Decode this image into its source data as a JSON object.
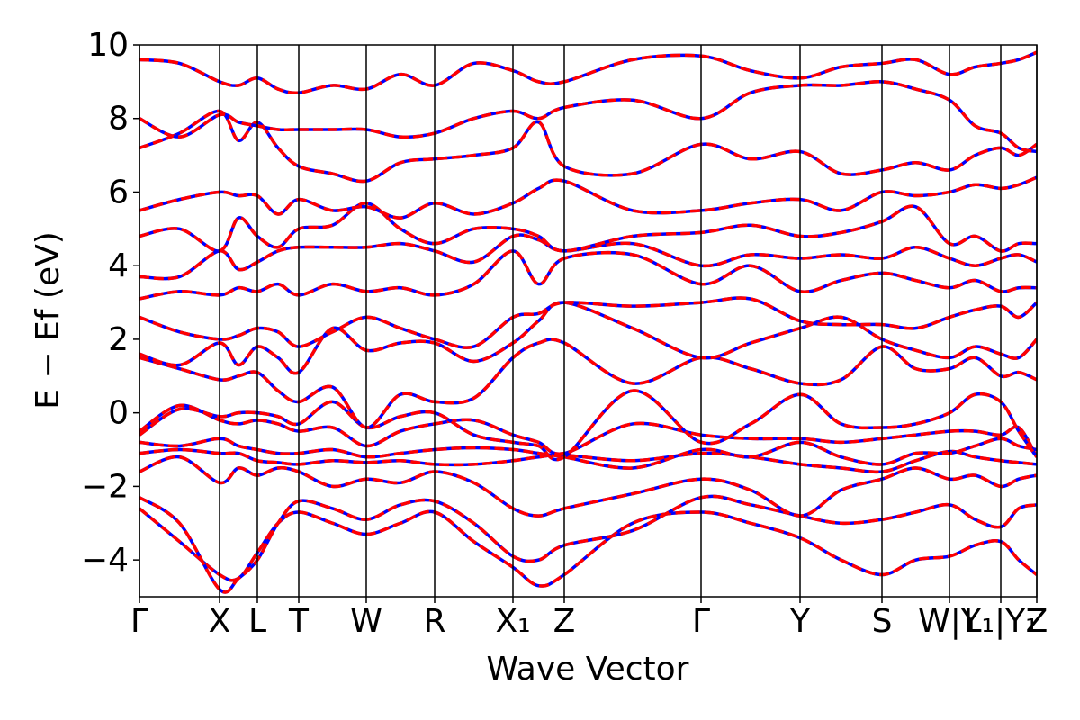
{
  "chart_data": {
    "type": "line",
    "xlabel": "Wave Vector",
    "ylabel": "E − Ef (eV)",
    "xlim": [
      0,
      9.97
    ],
    "ylim": [
      -5,
      10
    ],
    "xticks": [
      {
        "value": 0,
        "label": "Γ"
      },
      {
        "value": 0.89,
        "label": "X"
      },
      {
        "value": 1.31,
        "label": "L"
      },
      {
        "value": 1.77,
        "label": "T"
      },
      {
        "value": 2.52,
        "label": "W"
      },
      {
        "value": 3.28,
        "label": "R"
      },
      {
        "value": 4.15,
        "label": "X₁"
      },
      {
        "value": 4.72,
        "label": "Z"
      },
      {
        "value": 6.24,
        "label": "Γ"
      },
      {
        "value": 7.34,
        "label": "Y"
      },
      {
        "value": 8.25,
        "label": "S"
      },
      {
        "value": 9.0,
        "label": "W|Y"
      },
      {
        "value": 9.57,
        "label": "L₁|Y₁"
      },
      {
        "value": 9.97,
        "label": "Z"
      }
    ],
    "yticks": [
      {
        "value": -4,
        "label": "−4"
      },
      {
        "value": -2,
        "label": "−2"
      },
      0,
      2,
      4,
      6,
      8,
      10
    ],
    "line_colors": [
      "#0000ff",
      "#ff0000"
    ],
    "line_styles": [
      "solid",
      "dashed"
    ],
    "x": [
      0,
      0.445,
      0.89,
      1.1,
      1.31,
      1.54,
      1.77,
      2.145,
      2.52,
      2.9,
      3.28,
      3.715,
      4.15,
      4.435,
      4.72,
      5.48,
      6.24,
      6.79,
      7.34,
      7.795,
      8.25,
      8.625,
      9.0,
      9.285,
      9.57,
      9.77,
      9.97
    ],
    "series": [
      {
        "values": [
          -2.6,
          -3.5,
          -4.4,
          -4.5,
          -3.8,
          -3.0,
          -2.7,
          -3.0,
          -3.3,
          -3.0,
          -2.7,
          -3.5,
          -4.2,
          -4.7,
          -4.4,
          -3.0,
          -2.7,
          -3.0,
          -3.4,
          -4.0,
          -4.4,
          -4.0,
          -3.9,
          -3.6,
          -3.5,
          -4.0,
          -4.4
        ]
      },
      {
        "values": [
          -2.3,
          -3.0,
          -4.8,
          -4.5,
          -4.0,
          -3.0,
          -2.4,
          -2.6,
          -2.9,
          -2.5,
          -2.4,
          -3.0,
          -3.9,
          -4.0,
          -3.6,
          -3.2,
          -2.3,
          -2.5,
          -2.8,
          -3.0,
          -2.9,
          -2.7,
          -2.5,
          -2.9,
          -3.1,
          -2.6,
          -2.5
        ]
      },
      {
        "values": [
          -1.6,
          -1.2,
          -1.9,
          -1.5,
          -1.7,
          -1.5,
          -1.6,
          -2.0,
          -1.8,
          -1.9,
          -1.6,
          -1.9,
          -2.6,
          -2.8,
          -2.6,
          -2.2,
          -1.8,
          -2.1,
          -2.8,
          -2.1,
          -1.8,
          -1.5,
          -1.8,
          -1.7,
          -2.0,
          -1.8,
          -1.7
        ]
      },
      {
        "values": [
          -1.1,
          -1.0,
          -1.1,
          -1.1,
          -1.3,
          -1.35,
          -1.4,
          -1.3,
          -1.35,
          -1.3,
          -1.4,
          -1.4,
          -1.3,
          -1.2,
          -1.15,
          -1.3,
          -1.1,
          -1.2,
          -1.4,
          -1.5,
          -1.6,
          -1.3,
          -1.05,
          -1.2,
          -1.3,
          -1.35,
          -1.4
        ]
      },
      {
        "values": [
          -0.8,
          -0.9,
          -0.7,
          -0.9,
          -1.0,
          -1.1,
          -1.1,
          -1.0,
          -1.2,
          -1.1,
          -1.0,
          -0.95,
          -1.0,
          -1.1,
          -1.2,
          -1.5,
          -1.0,
          -1.2,
          -0.8,
          -1.2,
          -1.4,
          -1.1,
          -1.1,
          -0.9,
          -0.7,
          -0.9,
          -1.0
        ]
      },
      {
        "values": [
          -0.5,
          0.2,
          -0.2,
          -0.3,
          -0.2,
          -0.3,
          -0.5,
          -0.4,
          -0.9,
          -0.5,
          -0.3,
          -0.2,
          -0.6,
          -0.8,
          -1.1,
          -0.3,
          -0.6,
          -0.7,
          -0.7,
          -0.8,
          -0.7,
          -0.6,
          -0.5,
          -0.5,
          -0.6,
          -0.4,
          -1.2
        ]
      },
      {
        "values": [
          -0.6,
          0.1,
          -0.1,
          0.0,
          0.0,
          -0.1,
          -0.3,
          0.3,
          -0.4,
          -0.1,
          0.0,
          -0.6,
          -0.8,
          -0.9,
          -1.2,
          0.6,
          -0.8,
          -0.3,
          0.5,
          -0.3,
          -0.4,
          -0.3,
          0.0,
          0.5,
          0.3,
          -0.5,
          -1.2
        ]
      },
      {
        "values": [
          1.5,
          1.2,
          0.9,
          1.0,
          1.1,
          0.6,
          0.3,
          0.7,
          -0.4,
          0.5,
          0.3,
          0.4,
          1.5,
          1.9,
          1.9,
          0.8,
          1.5,
          1.2,
          0.8,
          0.9,
          1.8,
          1.2,
          1.2,
          1.5,
          1.0,
          1.1,
          0.9
        ]
      },
      {
        "values": [
          1.6,
          1.3,
          1.9,
          1.3,
          1.8,
          1.5,
          1.1,
          2.3,
          1.7,
          1.9,
          1.9,
          1.4,
          1.9,
          2.5,
          3.0,
          2.3,
          1.5,
          1.9,
          2.3,
          2.6,
          2.0,
          1.7,
          1.5,
          1.8,
          1.6,
          1.5,
          2.0
        ]
      },
      {
        "values": [
          2.6,
          2.2,
          2.0,
          2.1,
          2.3,
          2.2,
          1.8,
          2.2,
          2.6,
          2.3,
          2.0,
          1.8,
          2.6,
          2.7,
          3.0,
          2.9,
          3.0,
          3.1,
          2.5,
          2.4,
          2.4,
          2.3,
          2.6,
          2.8,
          2.9,
          2.6,
          3.0
        ]
      },
      {
        "values": [
          3.1,
          3.3,
          3.2,
          3.4,
          3.3,
          3.5,
          3.2,
          3.5,
          3.3,
          3.4,
          3.2,
          3.5,
          4.4,
          3.5,
          4.2,
          4.3,
          3.5,
          4.0,
          3.3,
          3.6,
          3.8,
          3.6,
          3.4,
          3.6,
          3.3,
          3.4,
          3.4
        ]
      },
      {
        "values": [
          3.7,
          3.7,
          4.4,
          3.9,
          4.1,
          4.4,
          4.5,
          4.5,
          4.5,
          4.6,
          4.4,
          4.1,
          4.8,
          4.7,
          4.4,
          4.6,
          4.0,
          4.3,
          4.2,
          4.3,
          4.2,
          4.5,
          4.2,
          4.0,
          4.2,
          4.3,
          4.1
        ]
      },
      {
        "values": [
          4.8,
          5.0,
          4.4,
          5.3,
          4.8,
          4.5,
          5.0,
          5.1,
          5.7,
          5.0,
          4.6,
          5.0,
          5.0,
          4.8,
          4.4,
          4.8,
          4.9,
          5.1,
          4.8,
          4.9,
          5.2,
          5.6,
          4.6,
          4.8,
          4.4,
          4.6,
          4.6
        ]
      },
      {
        "values": [
          5.5,
          5.8,
          6.0,
          5.9,
          5.9,
          5.4,
          5.8,
          5.5,
          5.6,
          5.3,
          5.7,
          5.4,
          5.7,
          6.1,
          6.3,
          5.5,
          5.5,
          5.7,
          5.8,
          5.5,
          6.0,
          5.9,
          6.0,
          6.2,
          6.1,
          6.2,
          6.4
        ]
      },
      {
        "values": [
          7.2,
          7.6,
          8.2,
          7.4,
          7.9,
          7.2,
          6.7,
          6.5,
          6.3,
          6.8,
          6.9,
          7.0,
          7.2,
          7.9,
          6.7,
          6.5,
          7.3,
          6.9,
          7.1,
          6.5,
          6.6,
          6.8,
          6.6,
          7.0,
          7.2,
          7.0,
          7.3
        ]
      },
      {
        "values": [
          8.0,
          7.5,
          8.1,
          7.9,
          7.8,
          7.7,
          7.7,
          7.7,
          7.7,
          7.5,
          7.6,
          8.0,
          8.2,
          8.0,
          8.3,
          8.5,
          8.0,
          8.7,
          8.9,
          8.9,
          9.0,
          8.8,
          8.5,
          7.8,
          7.6,
          7.2,
          7.1
        ]
      },
      {
        "values": [
          9.6,
          9.5,
          9.0,
          8.9,
          9.1,
          8.8,
          8.7,
          8.9,
          8.8,
          9.2,
          8.9,
          9.5,
          9.3,
          9.0,
          9.0,
          9.6,
          9.7,
          9.3,
          9.1,
          9.4,
          9.5,
          9.6,
          9.2,
          9.4,
          9.5,
          9.6,
          9.8
        ]
      }
    ]
  }
}
